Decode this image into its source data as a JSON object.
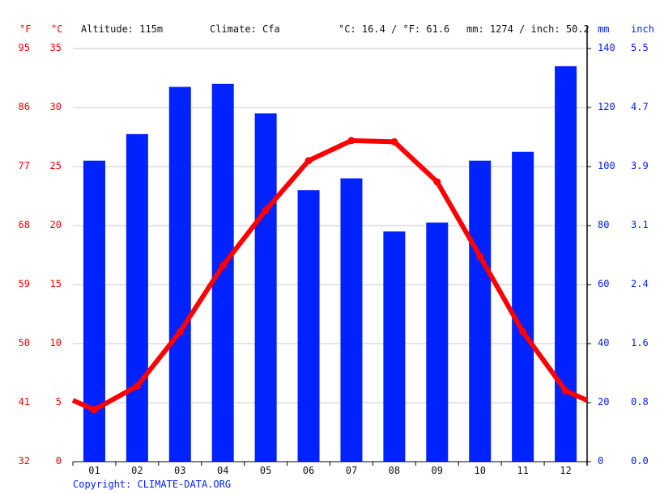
{
  "header": {
    "unit_f": "°F",
    "unit_c": "°C",
    "altitude": "Altitude: 115m",
    "climate": "Climate: Cfa",
    "temp_summary": "°C: 16.4 / °F: 61.6",
    "precip_summary": "mm: 1274 / inch: 50.2",
    "unit_mm": "mm",
    "unit_inch": "inch"
  },
  "axes": {
    "f_ticks": [
      "95",
      "86",
      "77",
      "68",
      "59",
      "50",
      "41",
      "32"
    ],
    "c_ticks": [
      "35",
      "30",
      "25",
      "20",
      "15",
      "10",
      "5",
      "0"
    ],
    "mm_ticks": [
      "140",
      "120",
      "100",
      "80",
      "60",
      "40",
      "20",
      "0"
    ],
    "inch_ticks": [
      "5.5",
      "4.7",
      "3.9",
      "3.1",
      "2.4",
      "1.6",
      "0.8",
      "0.0"
    ]
  },
  "footer": {
    "copyright": "Copyright: CLIMATE-DATA.ORG"
  },
  "colors": {
    "temperature": "#ff0000",
    "precipitation": "#0022ff",
    "grid": "#c8c8c8",
    "axis": "#000000"
  },
  "chart_data": {
    "type": "bar+line",
    "title": "",
    "categories": [
      "01",
      "02",
      "03",
      "04",
      "05",
      "06",
      "07",
      "08",
      "09",
      "10",
      "11",
      "12"
    ],
    "series": [
      {
        "name": "Precipitation (mm)",
        "type": "bar",
        "axis": "right",
        "values": [
          102,
          111,
          127,
          128,
          118,
          92,
          96,
          78,
          81,
          102,
          105,
          134
        ]
      },
      {
        "name": "Temperature (°C)",
        "type": "line",
        "axis": "left",
        "values": [
          4.4,
          6.4,
          11.0,
          16.6,
          21.3,
          25.5,
          27.2,
          27.1,
          23.7,
          17.4,
          11.0,
          6.0
        ]
      }
    ],
    "left_axis": {
      "label": "°C",
      "range": [
        0,
        35
      ],
      "ticks": [
        0,
        5,
        10,
        15,
        20,
        25,
        30,
        35
      ]
    },
    "left_axis_secondary": {
      "label": "°F",
      "ticks": [
        32,
        41,
        50,
        59,
        68,
        77,
        86,
        95
      ]
    },
    "right_axis": {
      "label": "mm",
      "range": [
        0,
        140
      ],
      "ticks": [
        0,
        20,
        40,
        60,
        80,
        100,
        120,
        140
      ]
    },
    "right_axis_secondary": {
      "label": "inch",
      "ticks": [
        0.0,
        0.8,
        1.6,
        2.4,
        3.1,
        3.9,
        4.7,
        5.5
      ]
    },
    "annotations": [
      "Altitude: 115m",
      "Climate: Cfa",
      "°C: 16.4 / °F: 61.6",
      "mm: 1274 / inch: 50.2"
    ],
    "grid": true,
    "legend": "none"
  }
}
